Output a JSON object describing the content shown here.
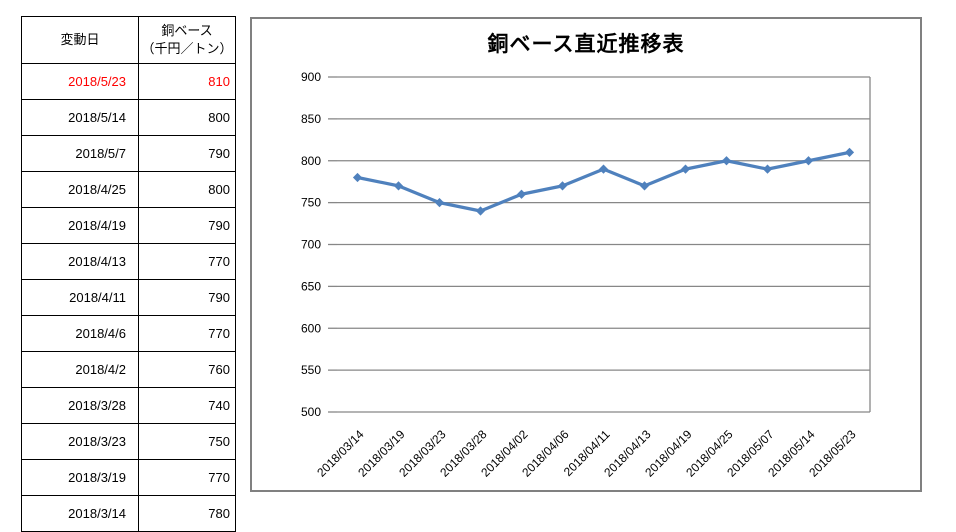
{
  "table": {
    "header": {
      "date": "変動日",
      "price_line1": "銅ベース",
      "price_line2": "（千円／トン）"
    },
    "rows": [
      {
        "date": "2018/5/23",
        "price": "810",
        "highlight": true
      },
      {
        "date": "2018/5/14",
        "price": "800",
        "highlight": false
      },
      {
        "date": "2018/5/7",
        "price": "790",
        "highlight": false
      },
      {
        "date": "2018/4/25",
        "price": "800",
        "highlight": false
      },
      {
        "date": "2018/4/19",
        "price": "790",
        "highlight": false
      },
      {
        "date": "2018/4/13",
        "price": "770",
        "highlight": false
      },
      {
        "date": "2018/4/11",
        "price": "790",
        "highlight": false
      },
      {
        "date": "2018/4/6",
        "price": "770",
        "highlight": false
      },
      {
        "date": "2018/4/2",
        "price": "760",
        "highlight": false
      },
      {
        "date": "2018/3/28",
        "price": "740",
        "highlight": false
      },
      {
        "date": "2018/3/23",
        "price": "750",
        "highlight": false
      },
      {
        "date": "2018/3/19",
        "price": "770",
        "highlight": false
      },
      {
        "date": "2018/3/14",
        "price": "780",
        "highlight": false
      }
    ],
    "highlight_color": "#ff0000",
    "text_color": "#000000"
  },
  "chart_data": {
    "type": "line",
    "title": "銅ベース直近推移表",
    "categories": [
      "2018/03/14",
      "2018/03/19",
      "2018/03/23",
      "2018/03/28",
      "2018/04/02",
      "2018/04/06",
      "2018/04/11",
      "2018/04/13",
      "2018/04/19",
      "2018/04/25",
      "2018/05/07",
      "2018/05/14",
      "2018/05/23"
    ],
    "values": [
      780,
      770,
      750,
      740,
      760,
      770,
      790,
      770,
      790,
      800,
      790,
      800,
      810
    ],
    "ylim": [
      500,
      900
    ],
    "ytick_step": 50,
    "grid": true,
    "legend": "none",
    "xlabel": "",
    "ylabel": "",
    "marker": "diamond",
    "line_color": "#4F81BD",
    "grid_color": "#878787",
    "axis_text_color": "#000000",
    "chart_border_color": "#808080"
  }
}
